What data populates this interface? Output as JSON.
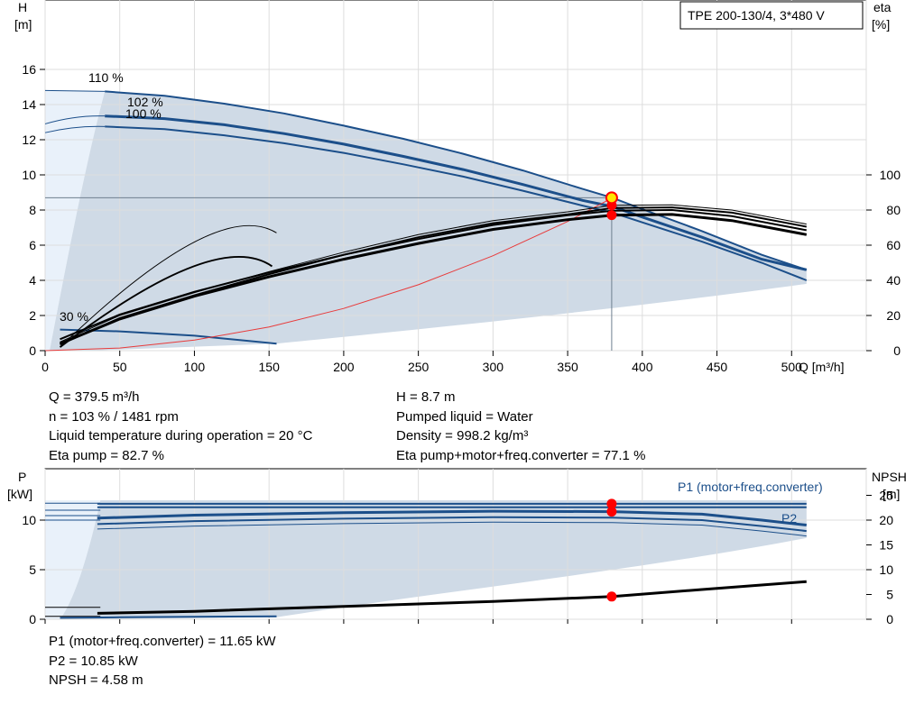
{
  "chart_data": [
    {
      "type": "line",
      "title": "TPE 200-130/4, 3*480 V",
      "xlabel": "Q [m³/h]",
      "ylabel_left": "H [m]",
      "ylabel_right": "eta [%]",
      "xlim": [
        0,
        550
      ],
      "ylim_left": [
        0,
        18
      ],
      "ylim_right": [
        0,
        100
      ],
      "xticks": [
        0,
        50,
        100,
        150,
        200,
        250,
        300,
        350,
        400,
        450,
        500
      ],
      "yticks_left": [
        0,
        2,
        4,
        6,
        8,
        10,
        12,
        14,
        16
      ],
      "yticks_right": [
        0,
        20,
        40,
        60,
        80,
        100
      ],
      "grid": true,
      "curve_labels": [
        "110 %",
        "102 %",
        "100 %",
        "30 %"
      ],
      "series": [
        {
          "name": "110 %",
          "color": "#1c4f8a",
          "x": [
            0,
            40,
            80,
            120,
            160,
            200,
            240,
            280,
            320,
            360,
            380,
            400,
            440,
            480,
            510
          ],
          "y": [
            14.8,
            14.75,
            14.5,
            14.05,
            13.5,
            12.8,
            12.05,
            11.2,
            10.25,
            9.2,
            8.7,
            8.05,
            6.8,
            5.45,
            4.6
          ]
        },
        {
          "name": "102 %",
          "color": "#1c4f8a",
          "x": [
            0,
            40,
            80,
            120,
            160,
            200,
            240,
            280,
            320,
            360,
            380,
            400,
            440,
            480,
            510
          ],
          "y": [
            13.1,
            13.35,
            13.2,
            12.85,
            12.35,
            11.75,
            11.05,
            10.3,
            9.45,
            8.55,
            8.2,
            7.6,
            6.45,
            5.2,
            4.6
          ]
        },
        {
          "name": "100 %",
          "color": "#1c4f8a",
          "x": [
            0,
            40,
            80,
            120,
            160,
            200,
            240,
            280,
            320,
            360,
            380,
            400,
            440,
            480,
            510
          ],
          "y": [
            12.5,
            12.75,
            12.6,
            12.25,
            11.8,
            11.25,
            10.6,
            9.9,
            9.1,
            8.25,
            7.85,
            7.3,
            6.2,
            5.0,
            4.0
          ]
        },
        {
          "name": "30 %",
          "color": "#1c4f8a",
          "x": [
            10,
            50,
            100,
            155
          ],
          "y": [
            1.2,
            1.1,
            0.85,
            0.4
          ]
        },
        {
          "name": "system curve",
          "color": "#e83b3b",
          "x": [
            0,
            50,
            100,
            150,
            200,
            250,
            300,
            350,
            380
          ],
          "y": [
            0,
            0.15,
            0.6,
            1.35,
            2.4,
            3.75,
            5.4,
            7.35,
            8.7
          ]
        },
        {
          "name": "eta pump",
          "color": "#000000",
          "axis": "right",
          "x": [
            10,
            50,
            100,
            150,
            200,
            250,
            300,
            350,
            380,
            420,
            460,
            510
          ],
          "y": [
            5,
            20,
            33,
            45,
            56,
            66,
            74,
            79,
            82.7,
            83,
            80,
            72
          ]
        },
        {
          "name": "eta pump+motor+freq.converter",
          "color": "#000000",
          "axis": "right",
          "x": [
            10,
            50,
            100,
            150,
            200,
            250,
            300,
            350,
            380,
            420,
            460,
            510
          ],
          "y": [
            4,
            18,
            31,
            42,
            52,
            61,
            69,
            74.5,
            77.1,
            77.5,
            74,
            66
          ]
        }
      ],
      "duty_point": {
        "Q": 379.5,
        "H": 8.7,
        "eta_pump": 82.7,
        "eta_total": 77.1
      }
    },
    {
      "type": "line",
      "ylabel_left": "P [kW]",
      "ylabel_right": "NPSH [m]",
      "xlim": [
        0,
        550
      ],
      "ylim_left": [
        0,
        12.5
      ],
      "ylim_right": [
        0,
        25
      ],
      "yticks_left": [
        0,
        5,
        10
      ],
      "yticks_right": [
        0,
        5,
        10,
        15,
        20,
        25
      ],
      "grid": true,
      "series": [
        {
          "name": "P1 (motor+freq.converter)",
          "color": "#1c4f8a",
          "x": [
            35,
            100,
            200,
            300,
            380,
            440,
            510
          ],
          "y": [
            11.65,
            11.65,
            11.65,
            11.65,
            11.65,
            11.65,
            11.65
          ]
        },
        {
          "name": "P2",
          "color": "#1c4f8a",
          "x": [
            35,
            100,
            200,
            300,
            380,
            440,
            480,
            510
          ],
          "y": [
            10.2,
            10.5,
            10.75,
            10.9,
            10.85,
            10.6,
            10.0,
            9.5
          ]
        },
        {
          "name": "NPSH",
          "color": "#000000",
          "axis": "right",
          "x": [
            35,
            100,
            200,
            300,
            380,
            440,
            510
          ],
          "y": [
            1.2,
            1.6,
            2.6,
            3.6,
            4.58,
            6.0,
            7.6
          ]
        }
      ]
    }
  ],
  "info_top_left": [
    "Q = 379.5 m³/h",
    "n = 103 % / 1481 rpm",
    "Liquid temperature during operation = 20 °C",
    "Eta pump = 82.7 %"
  ],
  "info_top_right": [
    "H = 8.7 m",
    "Pumped liquid = Water",
    "Density = 998.2 kg/m³",
    "Eta pump+motor+freq.converter = 77.1 %"
  ],
  "info_bottom": [
    "P1 (motor+freq.converter) = 11.65 kW",
    "P2 = 10.85 kW",
    "NPSH = 4.58 m"
  ],
  "labels": {
    "h_axis": "H",
    "h_unit": "[m]",
    "eta_axis": "eta",
    "eta_unit": "[%]",
    "p_axis": "P",
    "p_unit": "[kW]",
    "npsh_axis": "NPSH",
    "npsh_unit": "[m]",
    "q_axis": "Q [m³/h]",
    "p1_label": "P1 (motor+freq.converter)",
    "p2_label": "P2"
  },
  "colors": {
    "curve_blue": "#1c4f8a",
    "area_fill": "#cfdae6",
    "area_light": "#e9f1fa",
    "duty_red": "#ff0000",
    "duty_yellow": "#ffe600",
    "system_red": "#e83b3b"
  }
}
